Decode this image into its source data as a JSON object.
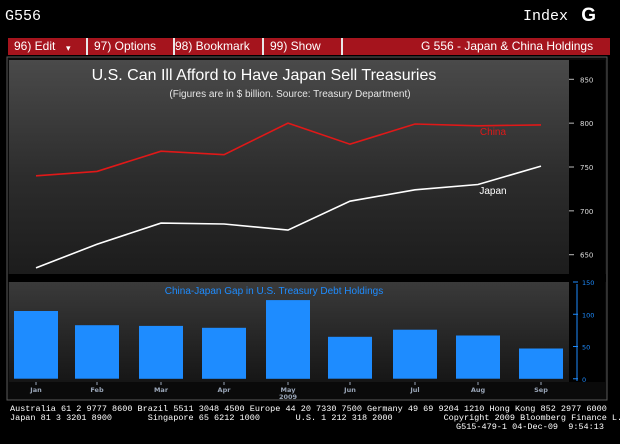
{
  "header": {
    "screen_code": "G556",
    "index_label": "Index",
    "index_key": "G"
  },
  "menu": {
    "items": [
      {
        "label": "96) Edit"
      },
      {
        "label": "97) Options"
      },
      {
        "label": "98) Bookmark"
      },
      {
        "label": "99) Show"
      }
    ],
    "title": "G 556 - Japan & China Holdings"
  },
  "colors": {
    "background": "#000000",
    "menu_red": "#a5141d",
    "china_line": "#e01818",
    "japan_line": "#ffffff",
    "bar_blue": "#1e8cff",
    "axis_text": "#9aa6b8"
  },
  "chart_data": [
    {
      "type": "line",
      "title": "U.S. Can Ill Afford to Have Japan Sell Treasuries",
      "subtitle": "(Figures are in $ billion. Source: Treasury Department)",
      "categories": [
        "Jan",
        "Feb",
        "Mar",
        "Apr",
        "May",
        "Jun",
        "Jul",
        "Aug",
        "Sep"
      ],
      "series": [
        {
          "name": "China",
          "values": [
            740,
            745,
            768,
            764,
            800,
            776,
            799,
            797,
            798
          ]
        },
        {
          "name": "Japan",
          "values": [
            635,
            662,
            686,
            685,
            678,
            711,
            724,
            730,
            751
          ]
        }
      ],
      "ylim": [
        628,
        872
      ],
      "yticks": [
        650,
        700,
        750,
        800,
        850
      ],
      "y_axis_side": "right"
    },
    {
      "type": "bar",
      "title": "China-Japan Gap in U.S. Treasury Debt Holdings",
      "categories": [
        "Jan",
        "Feb",
        "Mar",
        "Apr",
        "May",
        "Jun",
        "Jul",
        "Aug",
        "Sep"
      ],
      "year_label": "2009",
      "values": [
        105,
        83,
        82,
        79,
        122,
        65,
        76,
        67,
        47
      ],
      "ylim": [
        -5,
        150
      ],
      "yticks": [
        0,
        50,
        100,
        150
      ],
      "y_axis_side": "right"
    }
  ],
  "footer": {
    "line1": "Australia 61 2 9777 8600 Brazil 5511 3048 4500 Europe 44 20 7330 7500 Germany 49 69 9204 1210 Hong Kong 852 2977 6000",
    "line2": "Japan 81 3 3201 8900       Singapore 65 6212 1000       U.S. 1 212 318 2000          Copyright 2009 Bloomberg Finance L.P.",
    "line3": "G515-479-1 04-Dec-09  9:54:13"
  }
}
